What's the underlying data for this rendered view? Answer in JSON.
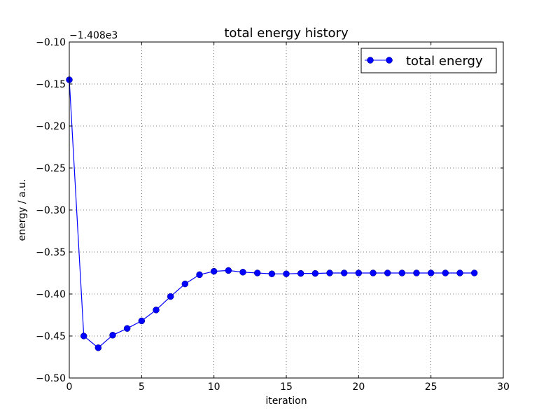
{
  "chart_data": {
    "type": "line",
    "title": "total energy history",
    "xlabel": "iteration",
    "ylabel": "energy / a.u.",
    "offset_label": "−1.408e3",
    "xlim": [
      0,
      30
    ],
    "ylim": [
      -0.5,
      -0.1
    ],
    "x_ticks": [
      0,
      5,
      10,
      15,
      20,
      25,
      30
    ],
    "y_ticks": [
      -0.1,
      -0.15,
      -0.2,
      -0.25,
      -0.3,
      -0.35,
      -0.4,
      -0.45,
      -0.5
    ],
    "x_tick_labels": [
      "0",
      "5",
      "10",
      "15",
      "20",
      "25",
      "30"
    ],
    "y_tick_labels": [
      "−0.10",
      "−0.15",
      "−0.20",
      "−0.25",
      "−0.30",
      "−0.35",
      "−0.40",
      "−0.45",
      "−0.50"
    ],
    "grid": true,
    "legend_position": "top-right",
    "series": [
      {
        "name": "total energy",
        "color": "#0000ff",
        "marker": "circle",
        "x": [
          0,
          1,
          2,
          3,
          4,
          5,
          6,
          7,
          8,
          9,
          10,
          11,
          12,
          13,
          14,
          15,
          16,
          17,
          18,
          19,
          20,
          21,
          22,
          23,
          24,
          25,
          26,
          27,
          28
        ],
        "y": [
          -0.145,
          -0.45,
          -0.464,
          -0.449,
          -0.441,
          -0.432,
          -0.419,
          -0.403,
          -0.388,
          -0.377,
          -0.373,
          -0.372,
          -0.374,
          -0.375,
          -0.376,
          -0.376,
          -0.3755,
          -0.3755,
          -0.375,
          -0.375,
          -0.375,
          -0.375,
          -0.375,
          -0.375,
          -0.375,
          -0.375,
          -0.375,
          -0.375,
          -0.375
        ]
      }
    ]
  }
}
